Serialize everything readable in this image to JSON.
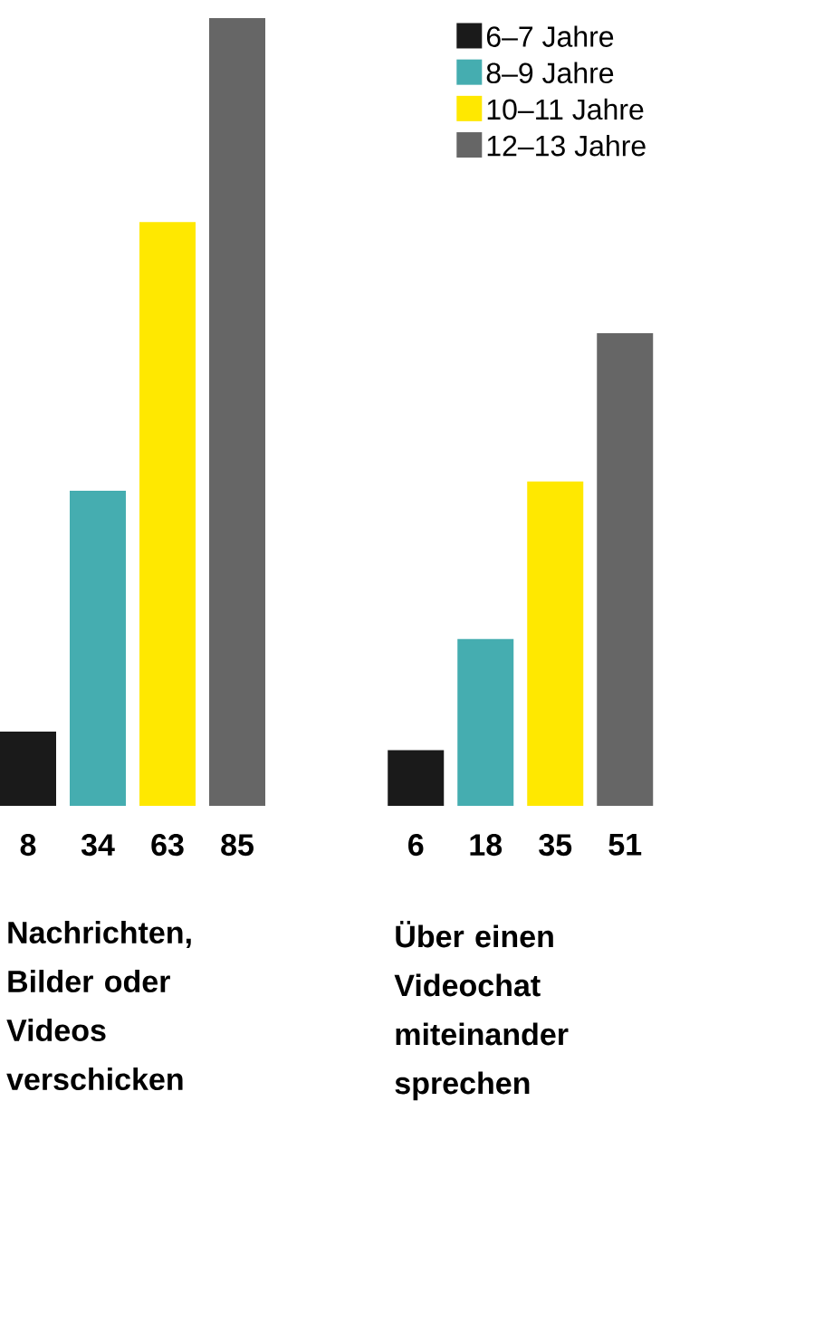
{
  "chart_data": {
    "type": "bar",
    "categories": [
      "Nachrichten, Bilder oder Videos verschicken",
      "Über einen Videochat miteinander sprechen"
    ],
    "series": [
      {
        "name": "6–7 Jahre",
        "color": "#1a1a1a",
        "values": [
          8,
          6
        ]
      },
      {
        "name": "8–9 Jahre",
        "color": "#45adb0",
        "values": [
          34,
          18
        ]
      },
      {
        "name": "10–11 Jahre",
        "color": "#ffe800",
        "values": [
          63,
          35
        ]
      },
      {
        "name": "12–13 Jahre",
        "color": "#666666",
        "values": [
          85,
          51
        ]
      }
    ],
    "ylim": [
      0,
      85
    ],
    "tick_labels": false,
    "data_labels": true,
    "legend": "top right"
  }
}
